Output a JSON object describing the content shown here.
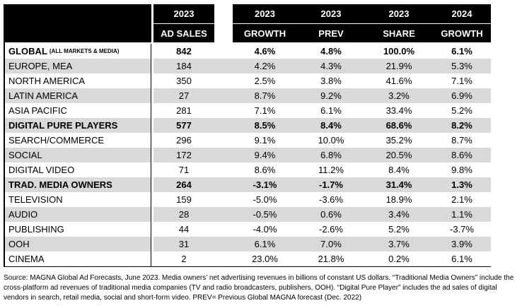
{
  "colors": {
    "header_bg": "#000000",
    "header_text": "#ffffff",
    "alt_row_bg": "#d9d9d9",
    "row_bg": "#ffffff",
    "text": "#000000"
  },
  "chart_data": {
    "type": "table",
    "header": {
      "blank": "",
      "ad_sales": {
        "year": "2023",
        "label": "AD SALES"
      },
      "value_cols": [
        {
          "year": "2023",
          "label": "GROWTH"
        },
        {
          "year": "2023",
          "label": "PREV"
        },
        {
          "year": "2023",
          "label": "SHARE"
        },
        {
          "year": "2024",
          "label": "GROWTH"
        }
      ]
    },
    "rows": [
      {
        "label": "GLOBAL",
        "suffix": "(ALL MARKETS & MEDIA)",
        "bold": true,
        "values": [
          "842",
          "4.6%",
          "4.8%",
          "100.0%",
          "6.1%"
        ]
      },
      {
        "label": "EUROPE, MEA",
        "bold": false,
        "values": [
          "184",
          "4.2%",
          "4.3%",
          "21.9%",
          "5.3%"
        ]
      },
      {
        "label": "NORTH AMERICA",
        "bold": false,
        "values": [
          "350",
          "2.5%",
          "3.8%",
          "41.6%",
          "7.1%"
        ]
      },
      {
        "label": "LATIN AMERICA",
        "bold": false,
        "values": [
          "27",
          "8.7%",
          "9.2%",
          "3.2%",
          "6.9%"
        ]
      },
      {
        "label": "ASIA PACIFIC",
        "bold": false,
        "values": [
          "281",
          "7.1%",
          "6.1%",
          "33.4%",
          "5.2%"
        ]
      },
      {
        "label": "DIGITAL PURE PLAYERS",
        "bold": true,
        "values": [
          "577",
          "8.5%",
          "8.4%",
          "68.6%",
          "8.2%"
        ]
      },
      {
        "label": "SEARCH/COMMERCE",
        "bold": false,
        "values": [
          "296",
          "9.1%",
          "10.0%",
          "35.2%",
          "8.7%"
        ]
      },
      {
        "label": "SOCIAL",
        "bold": false,
        "values": [
          "172",
          "9.4%",
          "6.8%",
          "20.5%",
          "8.6%"
        ]
      },
      {
        "label": "DIGITAL VIDEO",
        "bold": false,
        "values": [
          "71",
          "8.6%",
          "11.2%",
          "8.4%",
          "9.8%"
        ]
      },
      {
        "label": "TRAD. MEDIA OWNERS",
        "bold": true,
        "values": [
          "264",
          "-3.1%",
          "-1.7%",
          "31.4%",
          "1.3%"
        ]
      },
      {
        "label": "TELEVISION",
        "bold": false,
        "values": [
          "159",
          "-5.0%",
          "-3.6%",
          "18.9%",
          "2.1%"
        ]
      },
      {
        "label": "AUDIO",
        "bold": false,
        "values": [
          "28",
          "-0.5%",
          "0.6%",
          "3.4%",
          "1.1%"
        ]
      },
      {
        "label": "PUBLISHING",
        "bold": false,
        "values": [
          "44",
          "-4.0%",
          "-2.6%",
          "5.2%",
          "-3.7%"
        ]
      },
      {
        "label": "OOH",
        "bold": false,
        "values": [
          "31",
          "6.1%",
          "7.0%",
          "3.7%",
          "3.9%"
        ]
      },
      {
        "label": "CINEMA",
        "bold": false,
        "values": [
          "2",
          "23.0%",
          "21.8%",
          "0.2%",
          "6.1%"
        ]
      }
    ]
  },
  "footer": {
    "text": "Source: MAGNA Global Ad Forecasts, June 2023. Media owners’ net advertising revenues in billions of constant US dollars. “Traditional Media Owners” include the cross-platform ad revenues of traditional media companies (TV and radio broadcasters, publishers, OOH). “Digital Pure Player” includes the ad sales of digital vendors in search, retail media, social and short-form video. PREV= Previous Global MAGNA forecast (Dec. 2022)"
  }
}
